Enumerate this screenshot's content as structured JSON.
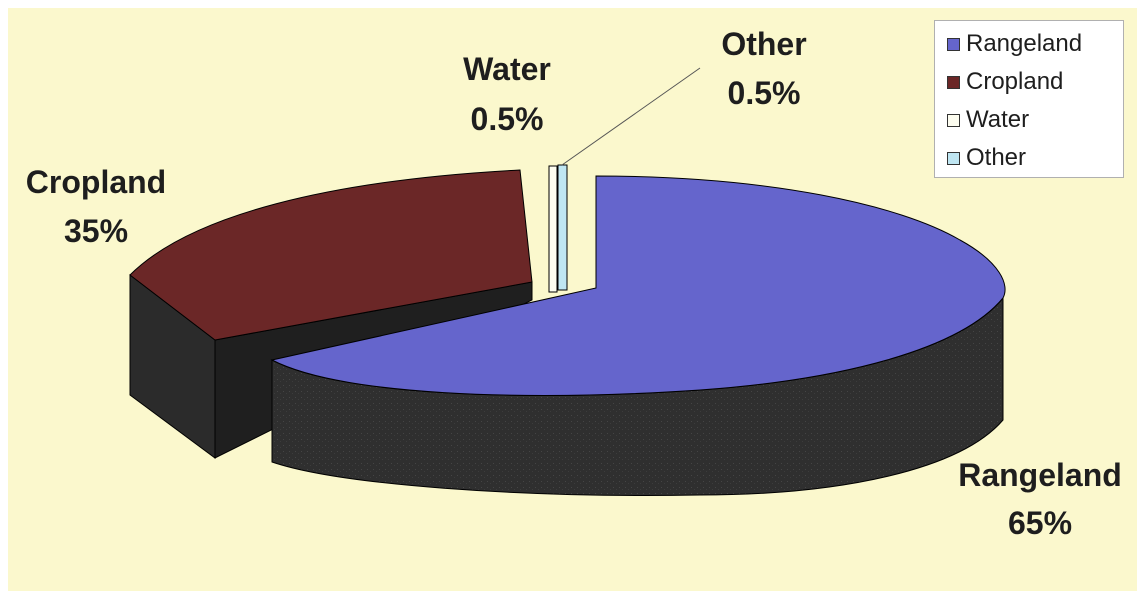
{
  "chart_data": {
    "type": "pie",
    "title": "",
    "slices": [
      {
        "name": "Rangeland",
        "value": 65,
        "label": "65%",
        "color": "#6565cc"
      },
      {
        "name": "Cropland",
        "value": 35,
        "label": "35%",
        "color": "#6b2727"
      },
      {
        "name": "Water",
        "value": 0.5,
        "label": "0.5%",
        "color": "#fdfdf0"
      },
      {
        "name": "Other",
        "value": 0.5,
        "label": "0.5%",
        "color": "#bfe6f2"
      }
    ],
    "legend": {
      "placement": "top-right",
      "entries": [
        "Rangeland",
        "Cropland",
        "Water",
        "Other"
      ]
    }
  }
}
